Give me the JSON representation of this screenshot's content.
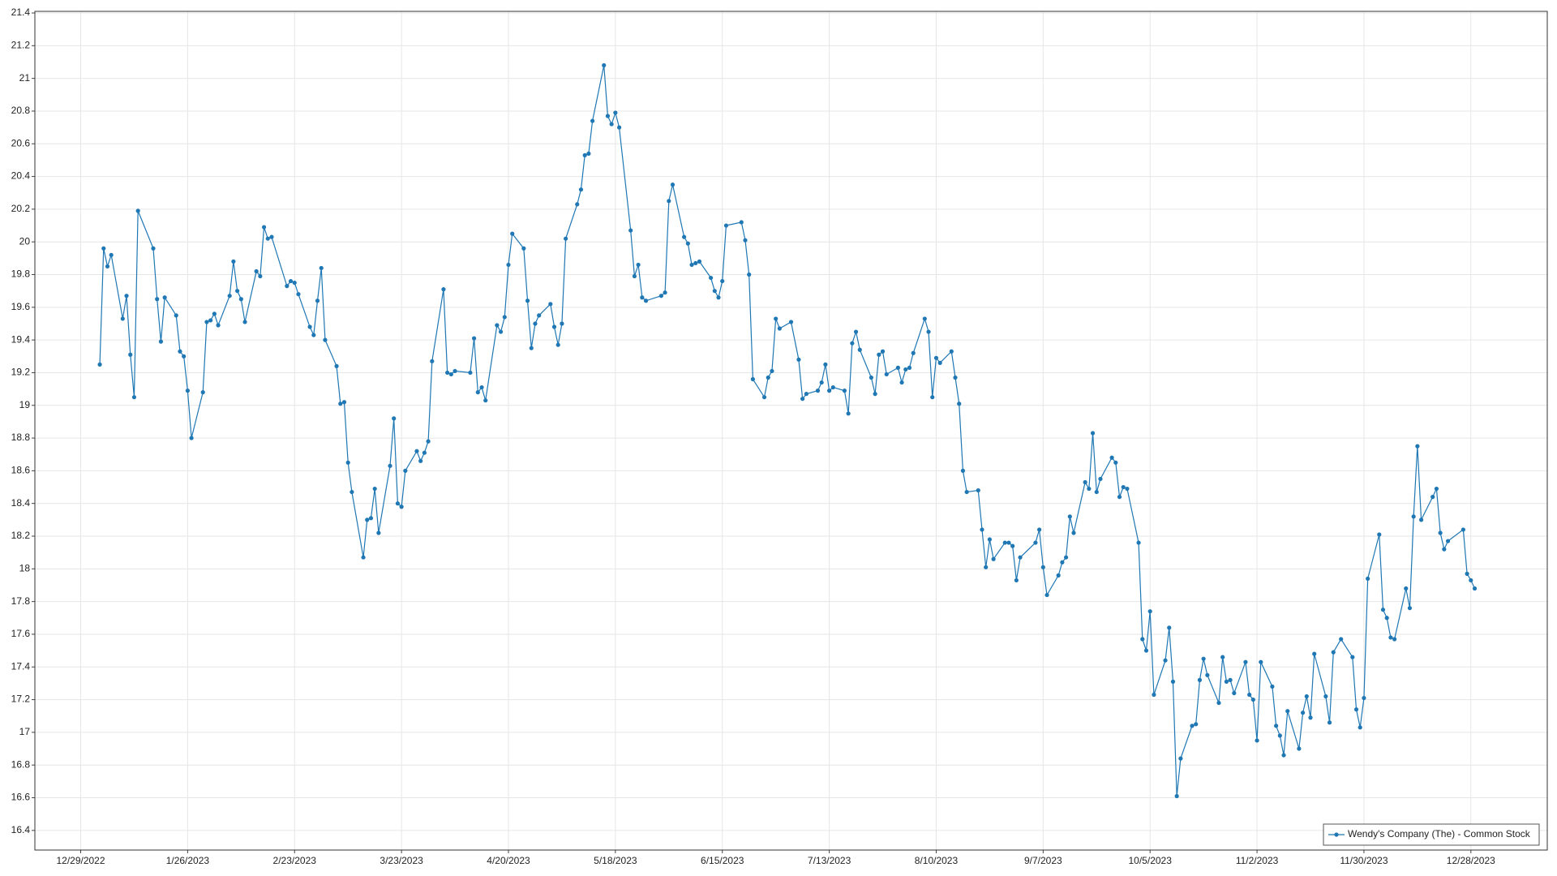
{
  "chart_data": {
    "type": "line",
    "x": [
      "1/3/2023",
      "1/4/2023",
      "1/5/2023",
      "1/6/2023",
      "1/9/2023",
      "1/10/2023",
      "1/11/2023",
      "1/12/2023",
      "1/13/2023",
      "1/17/2023",
      "1/18/2023",
      "1/19/2023",
      "1/20/2023",
      "1/23/2023",
      "1/24/2023",
      "1/25/2023",
      "1/26/2023",
      "1/27/2023",
      "1/30/2023",
      "1/31/2023",
      "2/1/2023",
      "2/2/2023",
      "2/3/2023",
      "2/6/2023",
      "2/7/2023",
      "2/8/2023",
      "2/9/2023",
      "2/10/2023",
      "2/13/2023",
      "2/14/2023",
      "2/15/2023",
      "2/16/2023",
      "2/17/2023",
      "2/21/2023",
      "2/22/2023",
      "2/23/2023",
      "2/24/2023",
      "2/27/2023",
      "2/28/2023",
      "3/1/2023",
      "3/2/2023",
      "3/3/2023",
      "3/6/2023",
      "3/7/2023",
      "3/8/2023",
      "3/9/2023",
      "3/10/2023",
      "3/13/2023",
      "3/14/2023",
      "3/15/2023",
      "3/16/2023",
      "3/17/2023",
      "3/20/2023",
      "3/21/2023",
      "3/22/2023",
      "3/23/2023",
      "3/24/2023",
      "3/27/2023",
      "3/28/2023",
      "3/29/2023",
      "3/30/2023",
      "3/31/2023",
      "4/3/2023",
      "4/4/2023",
      "4/5/2023",
      "4/6/2023",
      "4/10/2023",
      "4/11/2023",
      "4/12/2023",
      "4/13/2023",
      "4/14/2023",
      "4/17/2023",
      "4/18/2023",
      "4/19/2023",
      "4/20/2023",
      "4/21/2023",
      "4/24/2023",
      "4/25/2023",
      "4/26/2023",
      "4/27/2023",
      "4/28/2023",
      "5/1/2023",
      "5/2/2023",
      "5/3/2023",
      "5/4/2023",
      "5/5/2023",
      "5/8/2023",
      "5/9/2023",
      "5/10/2023",
      "5/11/2023",
      "5/12/2023",
      "5/15/2023",
      "5/16/2023",
      "5/17/2023",
      "5/18/2023",
      "5/19/2023",
      "5/22/2023",
      "5/23/2023",
      "5/24/2023",
      "5/25/2023",
      "5/26/2023",
      "5/30/2023",
      "5/31/2023",
      "6/1/2023",
      "6/2/2023",
      "6/5/2023",
      "6/6/2023",
      "6/7/2023",
      "6/8/2023",
      "6/9/2023",
      "6/12/2023",
      "6/13/2023",
      "6/14/2023",
      "6/15/2023",
      "6/16/2023",
      "6/20/2023",
      "6/21/2023",
      "6/22/2023",
      "6/23/2023",
      "6/26/2023",
      "6/27/2023",
      "6/28/2023",
      "6/29/2023",
      "6/30/2023",
      "7/3/2023",
      "7/5/2023",
      "7/6/2023",
      "7/7/2023",
      "7/10/2023",
      "7/11/2023",
      "7/12/2023",
      "7/13/2023",
      "7/14/2023",
      "7/17/2023",
      "7/18/2023",
      "7/19/2023",
      "7/20/2023",
      "7/21/2023",
      "7/24/2023",
      "7/25/2023",
      "7/26/2023",
      "7/27/2023",
      "7/28/2023",
      "7/31/2023",
      "8/1/2023",
      "8/2/2023",
      "8/3/2023",
      "8/4/2023",
      "8/7/2023",
      "8/8/2023",
      "8/9/2023",
      "8/10/2023",
      "8/11/2023",
      "8/14/2023",
      "8/15/2023",
      "8/16/2023",
      "8/17/2023",
      "8/18/2023",
      "8/21/2023",
      "8/22/2023",
      "8/23/2023",
      "8/24/2023",
      "8/25/2023",
      "8/28/2023",
      "8/29/2023",
      "8/30/2023",
      "8/31/2023",
      "9/1/2023",
      "9/5/2023",
      "9/6/2023",
      "9/7/2023",
      "9/8/2023",
      "9/11/2023",
      "9/12/2023",
      "9/13/2023",
      "9/14/2023",
      "9/15/2023",
      "9/18/2023",
      "9/19/2023",
      "9/20/2023",
      "9/21/2023",
      "9/22/2023",
      "9/25/2023",
      "9/26/2023",
      "9/27/2023",
      "9/28/2023",
      "9/29/2023",
      "10/2/2023",
      "10/3/2023",
      "10/4/2023",
      "10/5/2023",
      "10/6/2023",
      "10/9/2023",
      "10/10/2023",
      "10/11/2023",
      "10/12/2023",
      "10/13/2023",
      "10/16/2023",
      "10/17/2023",
      "10/18/2023",
      "10/19/2023",
      "10/20/2023",
      "10/23/2023",
      "10/24/2023",
      "10/25/2023",
      "10/26/2023",
      "10/27/2023",
      "10/30/2023",
      "10/31/2023",
      "11/1/2023",
      "11/2/2023",
      "11/3/2023",
      "11/6/2023",
      "11/7/2023",
      "11/8/2023",
      "11/9/2023",
      "11/10/2023",
      "11/13/2023",
      "11/14/2023",
      "11/15/2023",
      "11/16/2023",
      "11/17/2023",
      "11/20/2023",
      "11/21/2023",
      "11/22/2023",
      "11/24/2023",
      "11/27/2023",
      "11/28/2023",
      "11/29/2023",
      "11/30/2023",
      "12/1/2023",
      "12/4/2023",
      "12/5/2023",
      "12/6/2023",
      "12/7/2023",
      "12/8/2023",
      "12/11/2023",
      "12/12/2023",
      "12/13/2023",
      "12/14/2023",
      "12/15/2023",
      "12/18/2023",
      "12/19/2023",
      "12/20/2023",
      "12/21/2023",
      "12/22/2023",
      "12/26/2023",
      "12/27/2023",
      "12/28/2023",
      "12/29/2023"
    ],
    "series": [
      {
        "name": "Wendy's Company (The) - Common Stock",
        "color": "#1f77b4",
        "values": [
          19.25,
          19.96,
          19.85,
          19.92,
          19.53,
          19.67,
          19.31,
          19.05,
          20.19,
          19.96,
          19.65,
          19.39,
          19.66,
          19.55,
          19.33,
          19.3,
          19.09,
          18.8,
          19.08,
          19.51,
          19.52,
          19.56,
          19.49,
          19.67,
          19.88,
          19.7,
          19.65,
          19.51,
          19.82,
          19.79,
          20.09,
          20.02,
          20.03,
          19.73,
          19.76,
          19.75,
          19.68,
          19.48,
          19.43,
          19.64,
          19.84,
          19.4,
          19.24,
          19.01,
          19.02,
          18.65,
          18.47,
          18.07,
          18.3,
          18.31,
          18.49,
          18.22,
          18.63,
          18.92,
          18.4,
          18.38,
          18.6,
          18.72,
          18.66,
          18.71,
          18.78,
          19.27,
          19.71,
          19.2,
          19.19,
          19.21,
          19.2,
          19.41,
          19.08,
          19.11,
          19.03,
          19.49,
          19.45,
          19.54,
          19.86,
          20.05,
          19.96,
          19.64,
          19.35,
          19.5,
          19.55,
          19.62,
          19.48,
          19.37,
          19.5,
          20.02,
          20.23,
          20.32,
          20.53,
          20.54,
          20.74,
          21.08,
          20.77,
          20.72,
          20.79,
          20.7,
          20.07,
          19.79,
          19.86,
          19.66,
          19.64,
          19.67,
          19.69,
          20.25,
          20.35,
          20.03,
          19.99,
          19.86,
          19.87,
          19.88,
          19.78,
          19.7,
          19.66,
          19.76,
          20.1,
          20.12,
          20.01,
          19.8,
          19.16,
          19.05,
          19.17,
          19.21,
          19.53,
          19.47,
          19.51,
          19.28,
          19.04,
          19.07,
          19.09,
          19.14,
          19.25,
          19.09,
          19.11,
          19.09,
          18.95,
          19.38,
          19.45,
          19.34,
          19.17,
          19.07,
          19.31,
          19.33,
          19.19,
          19.23,
          19.14,
          19.22,
          19.23,
          19.32,
          19.53,
          19.45,
          19.05,
          19.29,
          19.26,
          19.33,
          19.17,
          19.01,
          18.6,
          18.47,
          18.48,
          18.24,
          18.01,
          18.18,
          18.06,
          18.16,
          18.16,
          18.14,
          17.93,
          18.07,
          18.16,
          18.24,
          18.01,
          17.84,
          17.96,
          18.04,
          18.07,
          18.32,
          18.22,
          18.53,
          18.49,
          18.83,
          18.47,
          18.55,
          18.68,
          18.65,
          18.44,
          18.5,
          18.49,
          18.16,
          17.57,
          17.5,
          17.74,
          17.23,
          17.44,
          17.64,
          17.31,
          16.61,
          16.84,
          17.04,
          17.05,
          17.32,
          17.45,
          17.35,
          17.18,
          17.46,
          17.31,
          17.32,
          17.24,
          17.43,
          17.23,
          17.2,
          16.95,
          17.43,
          17.28,
          17.04,
          16.98,
          16.86,
          17.13,
          16.9,
          17.12,
          17.22,
          17.09,
          17.48,
          17.22,
          17.06,
          17.49,
          17.57,
          17.46,
          17.14,
          17.03,
          17.21,
          17.94,
          18.21,
          17.75,
          17.7,
          17.58,
          17.57,
          17.88,
          17.76,
          18.32,
          18.75,
          18.3,
          18.44,
          18.49,
          18.22,
          18.12,
          18.17,
          18.24,
          17.97,
          17.93,
          17.88
        ]
      }
    ],
    "xlim": [
      "12/17/2022",
      "1/17/2024"
    ],
    "xticks": [
      "12/29/2022",
      "1/26/2023",
      "2/23/2023",
      "3/23/2023",
      "4/20/2023",
      "5/18/2023",
      "6/15/2023",
      "7/13/2023",
      "8/10/2023",
      "9/7/2023",
      "10/5/2023",
      "11/2/2023",
      "11/30/2023",
      "12/28/2023"
    ],
    "ylim": [
      16.28,
      21.41
    ],
    "yticks": [
      16.4,
      16.6,
      16.8,
      17,
      17.2,
      17.4,
      17.6,
      17.8,
      18,
      18.2,
      18.4,
      18.6,
      18.8,
      19,
      19.2,
      19.4,
      19.6,
      19.8,
      20,
      20.2,
      20.4,
      20.6,
      20.8,
      21,
      21.2,
      21.4
    ],
    "grid": true,
    "legend": "bottom-right"
  }
}
